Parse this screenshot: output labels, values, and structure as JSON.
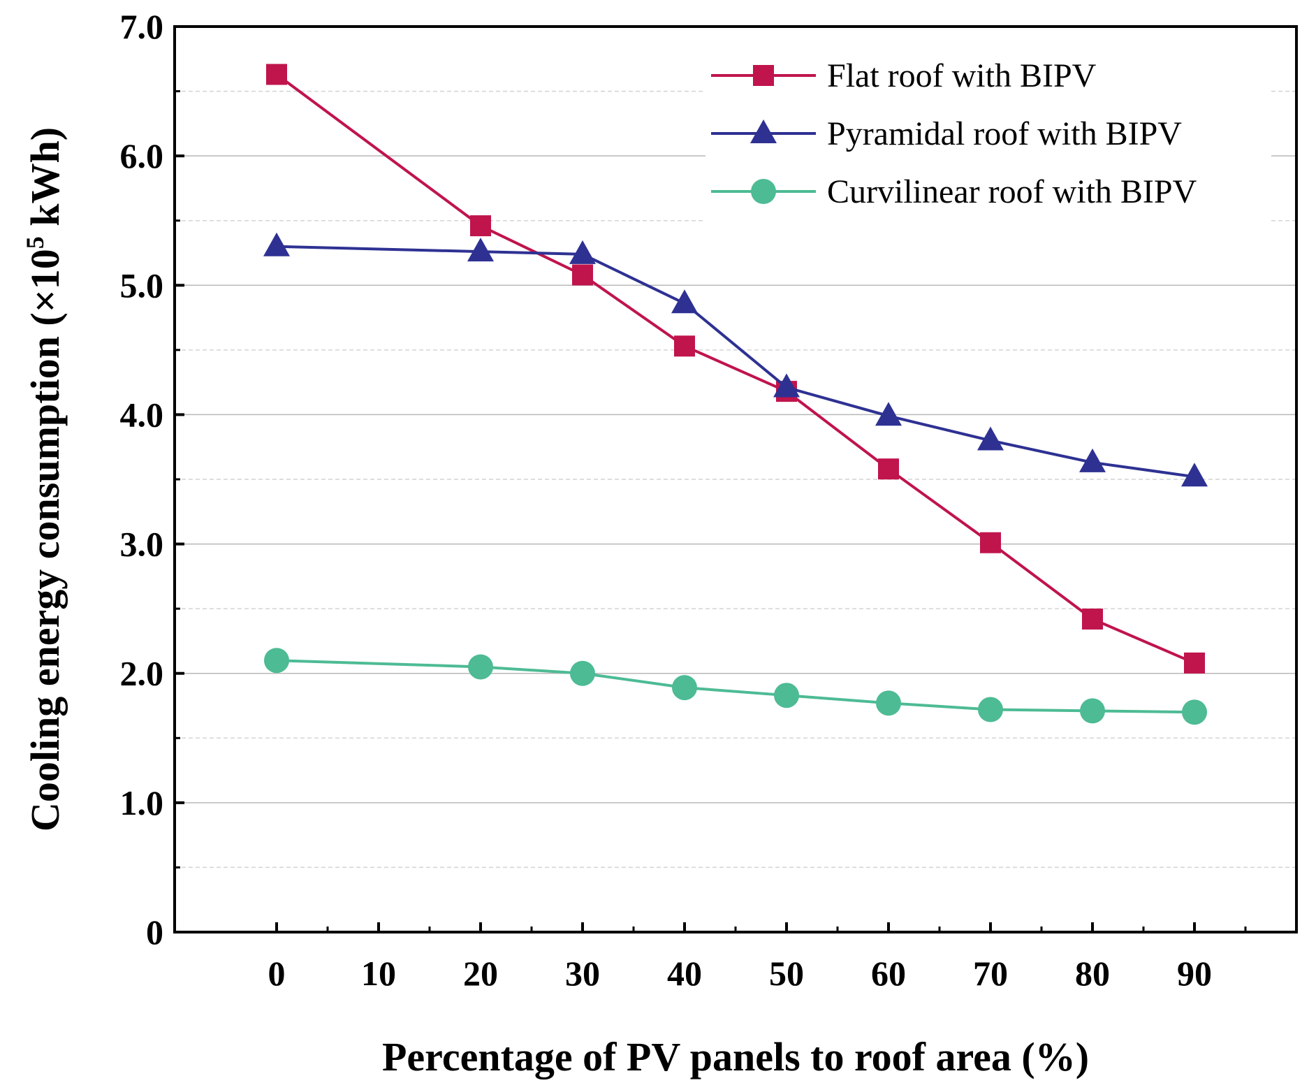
{
  "chart_data": {
    "type": "line",
    "xlabel": "Percentage of PV panels to roof area (%)",
    "ylabel_main": "Cooling energy consumption (×10",
    "ylabel_sup": "5",
    "ylabel_tail": " kWh)",
    "xlim": [
      -10,
      100
    ],
    "ylim": [
      0,
      7
    ],
    "x_ticks": [
      "0",
      "10",
      "20",
      "30",
      "40",
      "50",
      "60",
      "70",
      "80",
      "90"
    ],
    "y_ticks": [
      "0",
      "1.0",
      "2.0",
      "3.0",
      "4.0",
      "5.0",
      "6.0",
      "7.0"
    ],
    "grid": true,
    "legend_position": "top-right",
    "series": [
      {
        "name": "Flat roof with BIPV",
        "marker": "square",
        "color": "#c0144c",
        "x": [
          0,
          20,
          30,
          40,
          50,
          60,
          70,
          80,
          90
        ],
        "values": [
          6.63,
          5.46,
          5.08,
          4.53,
          4.18,
          3.58,
          3.01,
          2.42,
          2.08
        ]
      },
      {
        "name": "Pyramidal roof with BIPV",
        "marker": "triangle",
        "color": "#2e3192",
        "x": [
          0,
          20,
          30,
          40,
          50,
          60,
          70,
          80,
          90
        ],
        "values": [
          5.3,
          5.26,
          5.24,
          4.86,
          4.21,
          3.99,
          3.8,
          3.63,
          3.52
        ]
      },
      {
        "name": "Curvilinear roof with BIPV",
        "marker": "circle",
        "color": "#4dbb94",
        "x": [
          0,
          20,
          30,
          40,
          50,
          60,
          70,
          80,
          90
        ],
        "values": [
          2.1,
          2.05,
          2.0,
          1.89,
          1.83,
          1.77,
          1.72,
          1.71,
          1.7
        ]
      }
    ]
  }
}
